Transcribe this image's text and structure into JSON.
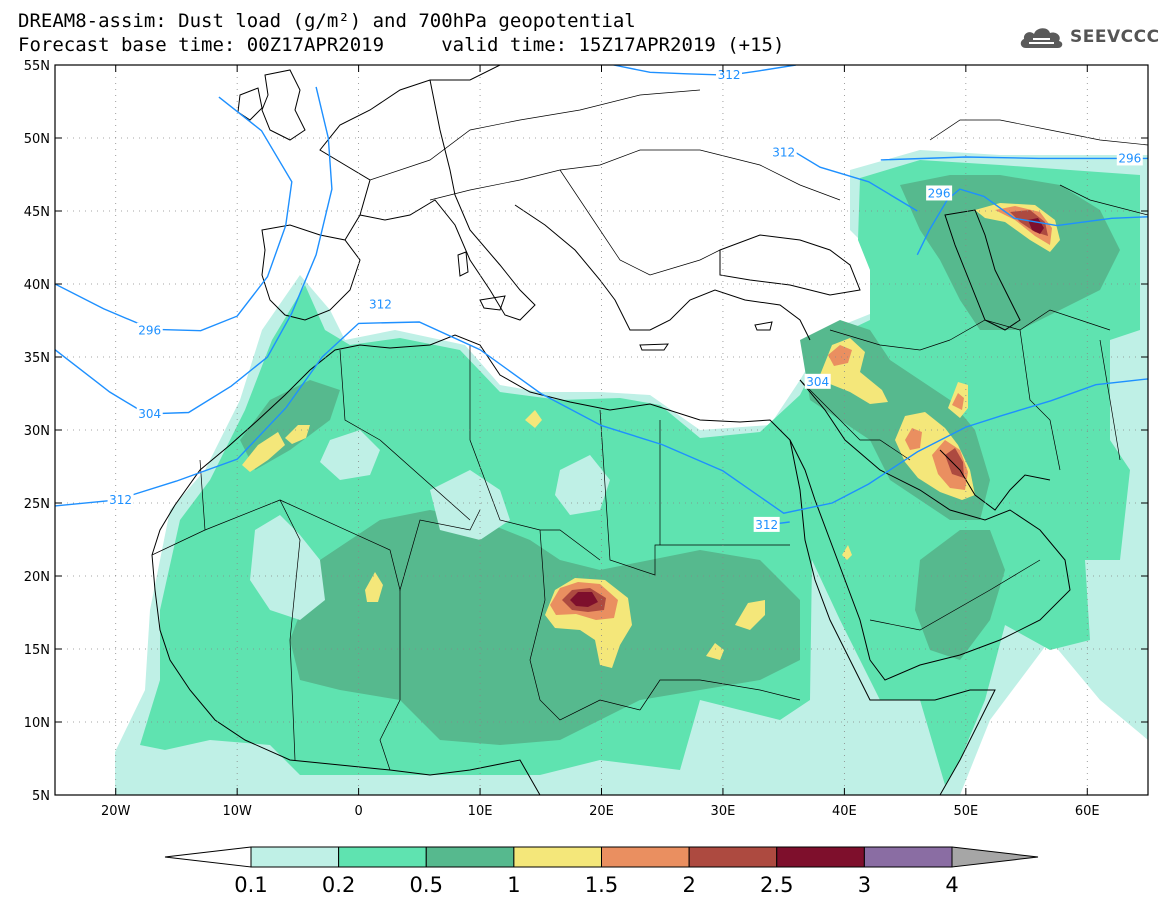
{
  "title_line1": "DREAM8-assim: Dust load (g/m²) and 700hPa geopotential",
  "title_line2": "Forecast base time: 00Z17APR2019     valid time: 15Z17APR2019 (+15)",
  "logo": {
    "text": "SEEVCCC",
    "icon": "cloud-icon",
    "color": "#555555"
  },
  "map": {
    "lon_range": [
      -25,
      65
    ],
    "lat_range": [
      5,
      55
    ],
    "lat_ticks": [
      {
        "value": 55,
        "label": "55N"
      },
      {
        "value": 50,
        "label": "50N"
      },
      {
        "value": 45,
        "label": "45N"
      },
      {
        "value": 40,
        "label": "40N"
      },
      {
        "value": 35,
        "label": "35N"
      },
      {
        "value": 30,
        "label": "30N"
      },
      {
        "value": 25,
        "label": "25N"
      },
      {
        "value": 20,
        "label": "20N"
      },
      {
        "value": 15,
        "label": "15N"
      },
      {
        "value": 10,
        "label": "10N"
      },
      {
        "value": 5,
        "label": "5N"
      }
    ],
    "lon_ticks": [
      {
        "value": -20,
        "label": "20W"
      },
      {
        "value": -10,
        "label": "10W"
      },
      {
        "value": 0,
        "label": "0"
      },
      {
        "value": 10,
        "label": "10E"
      },
      {
        "value": 20,
        "label": "20E"
      },
      {
        "value": 30,
        "label": "30E"
      },
      {
        "value": 40,
        "label": "40E"
      },
      {
        "value": 50,
        "label": "50E"
      },
      {
        "value": 60,
        "label": "60E"
      }
    ],
    "grid": "dotted",
    "contour_color": "#1e90ff",
    "geopotential_contours": [
      {
        "label": "296",
        "label_at": [
          -17.2,
          36.8
        ],
        "points": [
          [
            -25,
            40
          ],
          [
            -21,
            38.3
          ],
          [
            -17,
            36.9
          ],
          [
            -13,
            36.8
          ],
          [
            -10,
            37.8
          ],
          [
            -7.5,
            40.5
          ],
          [
            -6,
            44
          ],
          [
            -5.5,
            47
          ],
          [
            -8,
            50.5
          ],
          [
            -11.5,
            52.8
          ]
        ]
      },
      {
        "label": "304",
        "label_at": [
          -17.2,
          31.1
        ],
        "points": [
          [
            -25,
            35.5
          ],
          [
            -20.5,
            32.6
          ],
          [
            -17.5,
            31.1
          ],
          [
            -14,
            31.2
          ],
          [
            -10.5,
            33
          ],
          [
            -7.5,
            35
          ],
          [
            -5.5,
            38
          ],
          [
            -3.5,
            42
          ],
          [
            -2.2,
            46.5
          ],
          [
            -2.5,
            50
          ],
          [
            -3.5,
            53.5
          ]
        ]
      },
      {
        "label": "312",
        "label_at": [
          -19.6,
          25.2
        ],
        "points": [
          [
            -25,
            24.8
          ],
          [
            -20,
            25.2
          ],
          [
            -15,
            26.5
          ],
          [
            -10,
            28
          ],
          [
            -6,
            31.5
          ],
          [
            -3,
            35
          ],
          [
            0,
            37.3
          ],
          [
            5,
            37.4
          ],
          [
            10,
            35.5
          ],
          [
            15,
            32.5
          ],
          [
            20,
            30.3
          ],
          [
            25,
            29
          ],
          [
            30,
            27.2
          ],
          [
            35,
            24.3
          ],
          [
            39,
            25
          ],
          [
            42,
            26.3
          ],
          [
            46,
            28.5
          ],
          [
            50,
            30.2
          ],
          [
            53,
            31
          ],
          [
            57,
            32
          ],
          [
            60.7,
            33.1
          ],
          [
            65,
            33.5
          ]
        ]
      },
      {
        "label": "312",
        "label_at": [
          33.6,
          23.5
        ],
        "points": [
          [
            33.6,
            23.5
          ],
          [
            35.5,
            23.7
          ]
        ]
      },
      {
        "label": "312",
        "label_at": [
          1.8,
          38.6
        ],
        "points": [
          [
            1.8,
            38.6
          ]
        ]
      },
      {
        "label": "312",
        "label_at": [
          30.5,
          54.3
        ],
        "points": [
          [
            21,
            55
          ],
          [
            24,
            54.5
          ],
          [
            27,
            54.4
          ],
          [
            30.5,
            54.3
          ],
          [
            33,
            54.6
          ],
          [
            36,
            55
          ]
        ]
      },
      {
        "label": "304",
        "label_at": [
          37.8,
          33.3
        ],
        "points": [
          [
            37.8,
            33.3
          ]
        ]
      },
      {
        "label": "296",
        "label_at": [
          47.8,
          46.2
        ],
        "points": [
          [
            46,
            42
          ],
          [
            47,
            43.7
          ],
          [
            48.5,
            45.8
          ],
          [
            49.5,
            46.5
          ],
          [
            51.5,
            46
          ],
          [
            54,
            44.5
          ],
          [
            57.5,
            44
          ],
          [
            62,
            44.5
          ],
          [
            65,
            44.6
          ]
        ]
      },
      {
        "label": "296",
        "label_at": [
          63.5,
          48.6
        ],
        "points": [
          [
            43,
            48.5
          ],
          [
            50,
            48.7
          ],
          [
            56,
            48.6
          ],
          [
            63.5,
            48.6
          ],
          [
            65,
            48.6
          ]
        ]
      },
      {
        "label": "312",
        "label_at": [
          35,
          49
        ],
        "points": [
          [
            35,
            49.5
          ],
          [
            38,
            48
          ],
          [
            42,
            47
          ],
          [
            46,
            45
          ]
        ]
      }
    ]
  },
  "colorbar": {
    "levels": [
      "0.1",
      "0.2",
      "0.5",
      "1",
      "1.5",
      "2",
      "2.5",
      "3",
      "4"
    ],
    "colors": [
      "#bff0e6",
      "#5fe3b0",
      "#56b98e",
      "#f4e77a",
      "#ea8f60",
      "#ad4a40",
      "#7e0f2c",
      "#8a6da3"
    ],
    "below_color": "#ffffff",
    "above_color": "#a6a6a6"
  }
}
